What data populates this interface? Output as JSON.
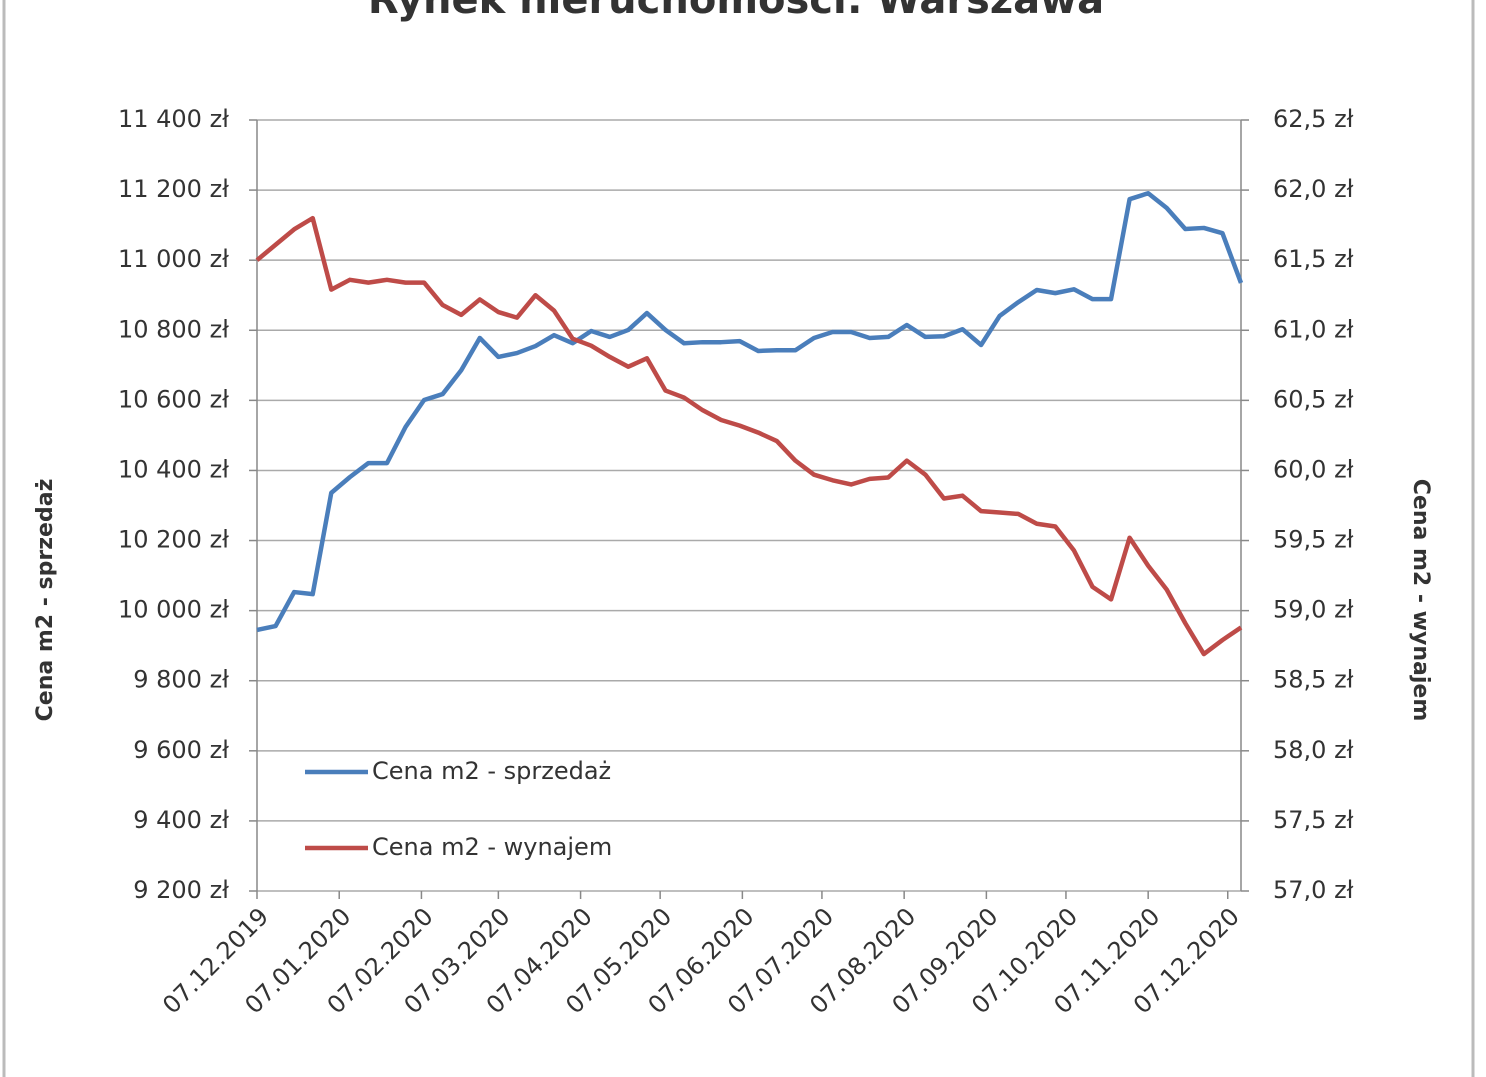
{
  "chart_data": {
    "type": "line",
    "title": "Rynek nieruchomości: Warszawa",
    "y_label": "Cena m2  - sprzedaż",
    "y2_label": "Cena m2 - wynajem",
    "x": [
      "07.12.2019",
      "14.12.2019",
      "21.12.2019",
      "28.12.2019",
      "04.01.2020",
      "11.01.2020",
      "18.01.2020",
      "25.01.2020",
      "01.02.2020",
      "08.02.2020",
      "15.02.2020",
      "22.02.2020",
      "29.02.2020",
      "07.03.2020",
      "14.03.2020",
      "21.03.2020",
      "28.03.2020",
      "04.04.2020",
      "11.04.2020",
      "18.04.2020",
      "25.04.2020",
      "02.05.2020",
      "09.05.2020",
      "16.05.2020",
      "23.05.2020",
      "30.05.2020",
      "06.06.2020",
      "13.06.2020",
      "20.06.2020",
      "27.06.2020",
      "04.07.2020",
      "11.07.2020",
      "18.07.2020",
      "25.07.2020",
      "01.08.2020",
      "08.08.2020",
      "15.08.2020",
      "22.08.2020",
      "29.08.2020",
      "05.09.2020",
      "12.09.2020",
      "19.09.2020",
      "26.09.2020",
      "03.10.2020",
      "10.10.2020",
      "17.10.2020",
      "24.10.2020",
      "31.10.2020",
      "07.11.2020",
      "14.11.2020",
      "21.11.2020",
      "28.11.2020",
      "05.12.2020",
      "12.12.2020"
    ],
    "series": [
      {
        "name": "Cena m2 - sprzedaż",
        "color": "#4a7ebb",
        "values": [
          9945,
          9956,
          10053,
          10047,
          10336,
          10381,
          10421,
          10421,
          10524,
          10601,
          10618,
          10686,
          10778,
          10724,
          10735,
          10755,
          10786,
          10763,
          10798,
          10781,
          10801,
          10849,
          10801,
          10763,
          10766,
          10766,
          10769,
          10741,
          10743,
          10743,
          10778,
          10795,
          10795,
          10778,
          10781,
          10815,
          10781,
          10783,
          10803,
          10758,
          10841,
          10880,
          10915,
          10906,
          10917,
          10889,
          10889,
          11174,
          11191,
          11149,
          11089,
          11092,
          11077,
          10935
        ]
      },
      {
        "name": "Cena m2 - wynajem",
        "color": "#be4b48",
        "axis": "y2",
        "values": [
          61.5,
          61.61,
          61.72,
          61.8,
          61.29,
          61.36,
          61.34,
          61.36,
          61.34,
          61.34,
          61.18,
          61.11,
          61.22,
          61.13,
          61.09,
          61.25,
          61.14,
          60.94,
          60.89,
          60.81,
          60.74,
          60.8,
          60.57,
          60.52,
          60.43,
          60.36,
          60.32,
          60.27,
          60.21,
          60.07,
          59.97,
          59.93,
          59.9,
          59.94,
          59.95,
          60.07,
          59.97,
          59.8,
          59.82,
          59.71,
          59.7,
          59.69,
          59.62,
          59.6,
          59.43,
          59.17,
          59.08,
          59.52,
          59.32,
          59.15,
          58.91,
          58.69,
          58.79,
          58.88
        ]
      }
    ],
    "xlim": [
      "07.12.2019",
      "12.12.2020"
    ],
    "xticks": [
      "07.12.2019",
      "07.01.2020",
      "07.02.2020",
      "07.03.2020",
      "07.04.2020",
      "07.05.2020",
      "07.06.2020",
      "07.07.2020",
      "07.08.2020",
      "07.09.2020",
      "07.10.2020",
      "07.11.2020",
      "07.12.2020"
    ],
    "ylim": [
      9200,
      11400
    ],
    "yticks": [
      {
        "value": 9200,
        "label": "9 200 zł"
      },
      {
        "value": 9400,
        "label": "9 400 zł"
      },
      {
        "value": 9600,
        "label": "9 600 zł"
      },
      {
        "value": 9800,
        "label": "9 800 zł"
      },
      {
        "value": 10000,
        "label": "10 000 zł"
      },
      {
        "value": 10200,
        "label": "10 200 zł"
      },
      {
        "value": 10400,
        "label": "10 400 zł"
      },
      {
        "value": 10600,
        "label": "10 600 zł"
      },
      {
        "value": 10800,
        "label": "10 800 zł"
      },
      {
        "value": 11000,
        "label": "11 000 zł"
      },
      {
        "value": 11200,
        "label": "11 200 zł"
      },
      {
        "value": 11400,
        "label": "11 400 zł"
      }
    ],
    "y2lim": [
      57,
      62.5
    ],
    "y2ticks": [
      {
        "value": 57,
        "label": "57,0 zł"
      },
      {
        "value": 57.5,
        "label": "57,5 zł"
      },
      {
        "value": 58,
        "label": "58,0 zł"
      },
      {
        "value": 58.5,
        "label": "58,5 zł"
      },
      {
        "value": 59,
        "label": "59,0 zł"
      },
      {
        "value": 59.5,
        "label": "59,5 zł"
      },
      {
        "value": 60,
        "label": "60,0 zł"
      },
      {
        "value": 60.5,
        "label": "60,5 zł"
      },
      {
        "value": 61,
        "label": "61,0 zł"
      },
      {
        "value": 61.5,
        "label": "61,5 zł"
      },
      {
        "value": 62,
        "label": "62,0 zł"
      },
      {
        "value": 62.5,
        "label": "62,5 zł"
      }
    ],
    "grid": true,
    "legend": "lower left"
  }
}
